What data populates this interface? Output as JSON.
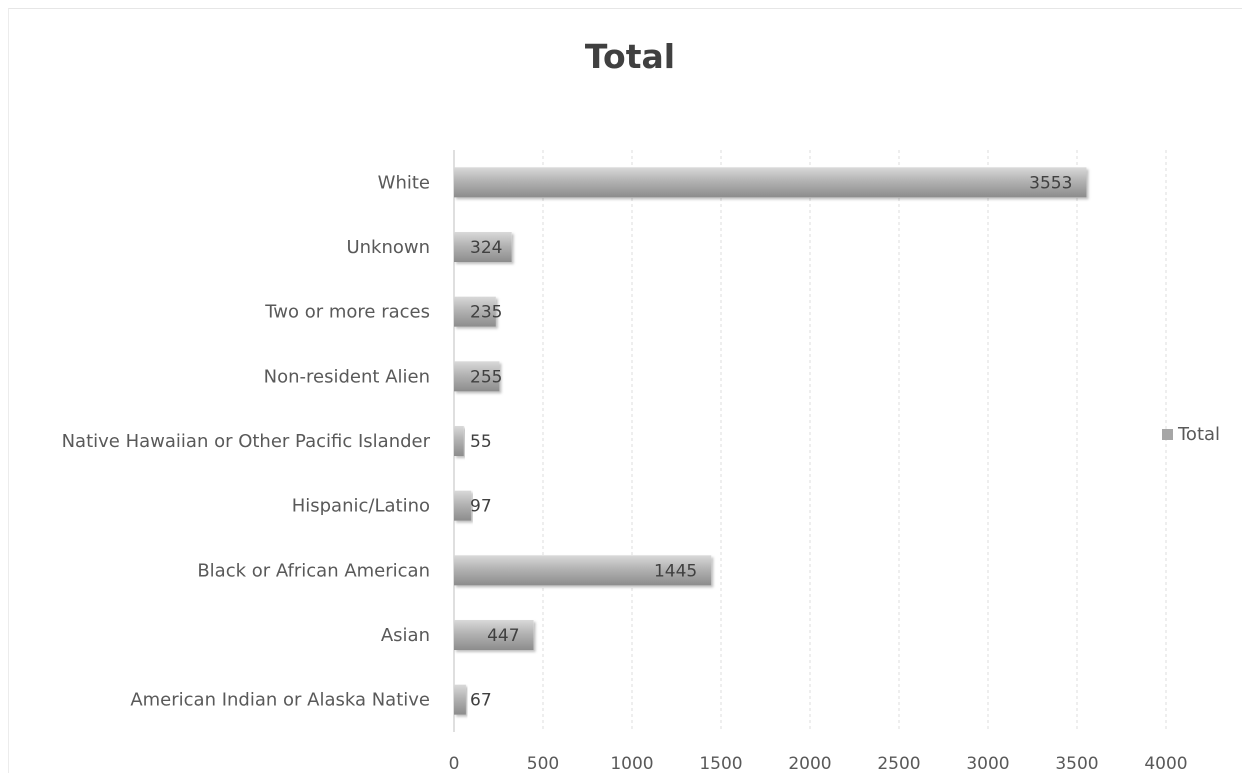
{
  "chart_data": {
    "type": "bar",
    "orientation": "horizontal",
    "title": "Total",
    "categories": [
      "American Indian or Alaska Native",
      "Asian",
      "Black or African American",
      "Hispanic/Latino",
      "Native Hawaiian or Other Pacific Islander",
      "Non-resident Alien",
      "Two or more races",
      "Unknown",
      "White"
    ],
    "series": [
      {
        "name": "Total",
        "values": [
          67,
          447,
          1445,
          97,
          55,
          255,
          235,
          324,
          3553
        ],
        "color": "#a6a6a6"
      }
    ],
    "data_labels": [
      "67",
      "447",
      "1445",
      "97",
      "55",
      "255",
      "235",
      "324",
      "3553"
    ],
    "xlim": [
      0,
      4000
    ],
    "x_ticks": [
      0,
      500,
      1000,
      1500,
      2000,
      2500,
      3000,
      3500,
      4000
    ],
    "x_tick_labels": [
      "0",
      "500",
      "1000",
      "1500",
      "2000",
      "2500",
      "3000",
      "3500",
      "4000"
    ],
    "xlabel": "",
    "ylabel": "",
    "grid": true,
    "legend": {
      "position": "right",
      "entries": [
        "Total"
      ]
    }
  }
}
